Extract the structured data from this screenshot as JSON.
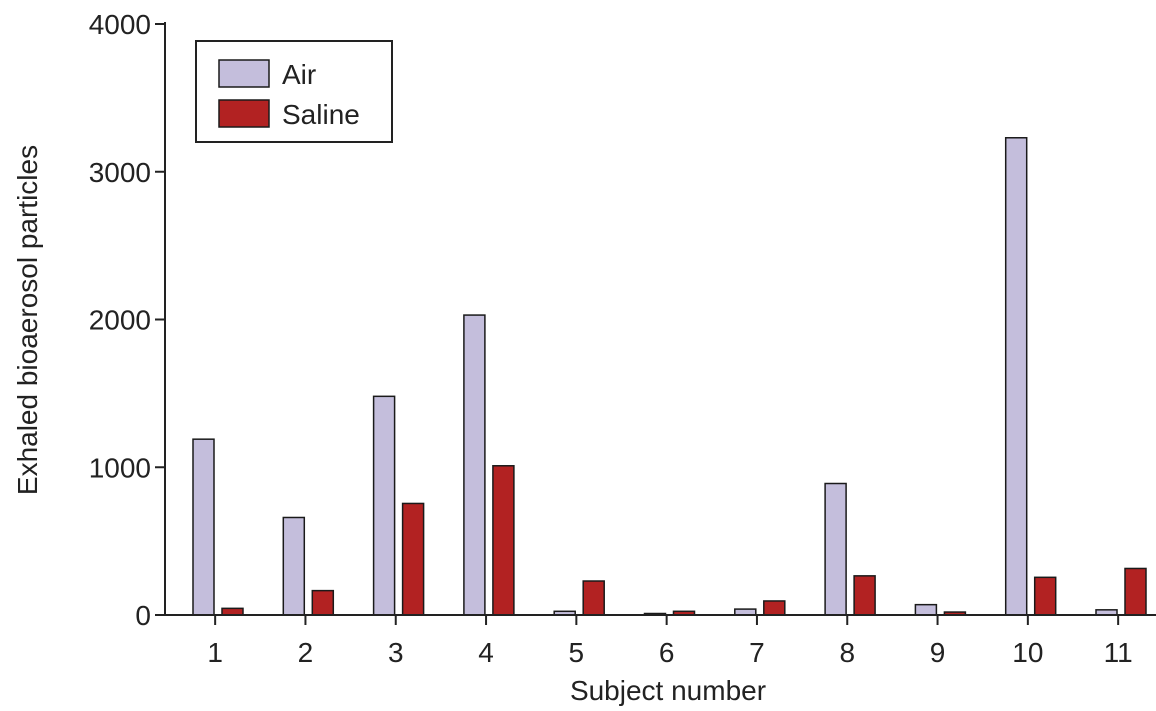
{
  "chart_data": {
    "type": "bar",
    "title": "",
    "xlabel": "Subject number",
    "ylabel": "Exhaled bioaerosol particles",
    "categories": [
      "1",
      "2",
      "3",
      "4",
      "5",
      "6",
      "7",
      "8",
      "9",
      "10",
      "11"
    ],
    "ylim": [
      0,
      4000
    ],
    "yticks": [
      0,
      1000,
      2000,
      3000,
      4000
    ],
    "grid": false,
    "legend_position": "top-left",
    "series": [
      {
        "name": "Air",
        "color": "#c4bedc",
        "values": [
          1190,
          660,
          1480,
          2030,
          25,
          10,
          40,
          890,
          70,
          3230,
          35
        ]
      },
      {
        "name": "Saline",
        "color": "#b22222",
        "values": [
          45,
          165,
          755,
          1010,
          230,
          25,
          95,
          265,
          20,
          255,
          315
        ]
      }
    ]
  }
}
